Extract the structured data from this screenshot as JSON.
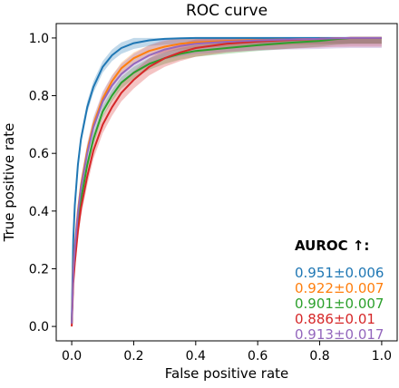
{
  "chart_data": {
    "type": "line",
    "title": "ROC curve",
    "xlabel": "False positive rate",
    "ylabel": "True positive rate",
    "xlim": [
      -0.05,
      1.05
    ],
    "ylim": [
      -0.05,
      1.05
    ],
    "x_ticks": [
      "0.0",
      "0.2",
      "0.4",
      "0.6",
      "0.8",
      "1.0"
    ],
    "y_ticks": [
      "0.0",
      "0.2",
      "0.4",
      "0.6",
      "0.8",
      "1.0"
    ],
    "grid": false,
    "legend": {
      "title": "AUROC ↑:",
      "placement": "bottom-right"
    },
    "x": [
      0,
      0.005,
      0.01,
      0.02,
      0.03,
      0.05,
      0.07,
      0.1,
      0.13,
      0.16,
      0.2,
      0.25,
      0.3,
      0.35,
      0.4,
      0.5,
      0.6,
      0.7,
      0.8,
      0.85,
      0.9,
      1.0
    ],
    "series": [
      {
        "label": "0.951±0.006",
        "color": "#1f77b4",
        "band_width": 0.02,
        "values": [
          0.02,
          0.3,
          0.42,
          0.56,
          0.65,
          0.76,
          0.83,
          0.9,
          0.94,
          0.965,
          0.982,
          0.992,
          0.997,
          0.999,
          1.0,
          1.0,
          1.0,
          1.0,
          1.0,
          1.0,
          1.0,
          1.0
        ]
      },
      {
        "label": "0.922±0.007",
        "color": "#ff7f0e",
        "band_width": 0.02,
        "values": [
          0.01,
          0.2,
          0.28,
          0.4,
          0.49,
          0.61,
          0.7,
          0.79,
          0.85,
          0.895,
          0.93,
          0.955,
          0.97,
          0.98,
          0.985,
          0.99,
          0.993,
          0.995,
          0.997,
          0.999,
          1.0,
          1.0
        ]
      },
      {
        "label": "0.901±0.007",
        "color": "#2ca02c",
        "band_width": 0.02,
        "values": [
          0.01,
          0.18,
          0.25,
          0.36,
          0.44,
          0.56,
          0.65,
          0.745,
          0.8,
          0.845,
          0.88,
          0.91,
          0.93,
          0.945,
          0.955,
          0.965,
          0.975,
          0.983,
          0.99,
          0.996,
          1.0,
          1.0
        ]
      },
      {
        "label": "0.886±0.01",
        "color": "#d62728",
        "band_width": 0.03,
        "values": [
          0.0,
          0.15,
          0.22,
          0.33,
          0.41,
          0.52,
          0.61,
          0.7,
          0.76,
          0.81,
          0.855,
          0.9,
          0.93,
          0.95,
          0.965,
          0.98,
          0.988,
          0.993,
          0.997,
          0.999,
          1.0,
          1.0
        ]
      },
      {
        "label": "0.913±0.017",
        "color": "#9467bd",
        "band_width": 0.035,
        "values": [
          0.01,
          0.19,
          0.27,
          0.39,
          0.48,
          0.6,
          0.69,
          0.78,
          0.835,
          0.875,
          0.91,
          0.94,
          0.96,
          0.972,
          0.98,
          0.987,
          0.992,
          0.995,
          0.997,
          0.999,
          1.0,
          1.0
        ]
      }
    ]
  }
}
